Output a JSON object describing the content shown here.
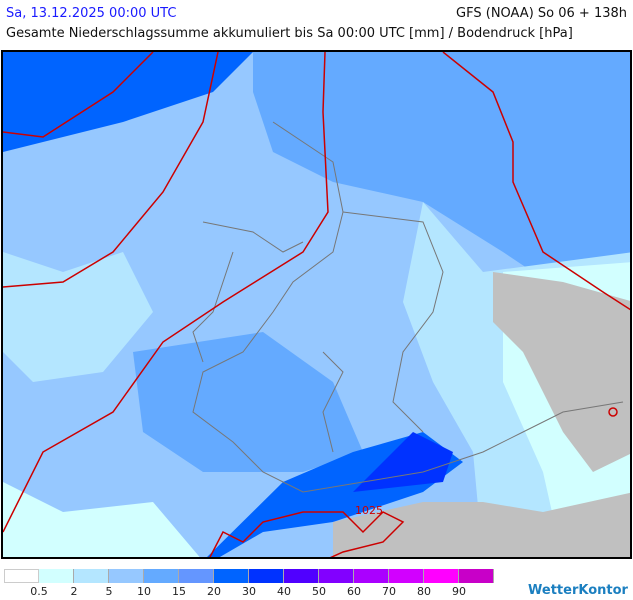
{
  "header": {
    "valid_time": "Sa, 13.12.2025 00:00 UTC",
    "model_run": "GFS (NOAA) So 06 + 138h",
    "title": "Gesamte Niederschlagssumme akkumuliert bis Sa 00:00 UTC [mm] / Bodendruck [hPa]"
  },
  "map": {
    "isobar_label": "1025",
    "isobar_color": "#cc0000",
    "land_mask_color": "#c0c0c0"
  },
  "legend": {
    "colors": [
      "#ffffff",
      "#d2ffff",
      "#b4e6ff",
      "#96c8ff",
      "#64aaff",
      "#6496ff",
      "#0064ff",
      "#0032ff",
      "#5000ff",
      "#8200ff",
      "#aa00ff",
      "#d200ff",
      "#ff00ff",
      "#c800c8"
    ],
    "labels": [
      "0.5",
      "2",
      "5",
      "10",
      "15",
      "20",
      "30",
      "40",
      "50",
      "60",
      "70",
      "80",
      "90"
    ]
  },
  "brand": {
    "logo": "WetterKontor"
  }
}
